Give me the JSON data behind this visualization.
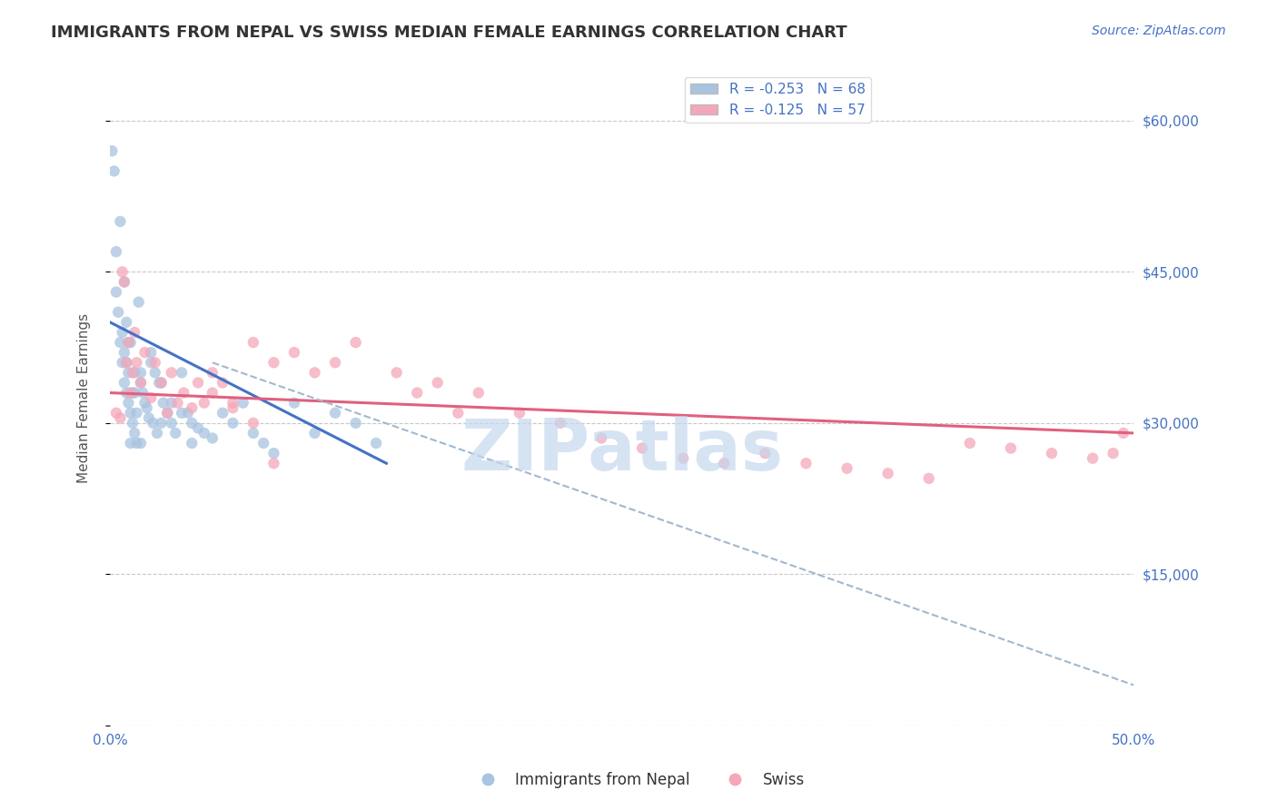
{
  "title": "IMMIGRANTS FROM NEPAL VS SWISS MEDIAN FEMALE EARNINGS CORRELATION CHART",
  "source": "Source: ZipAtlas.com",
  "xlabel": "",
  "ylabel": "Median Female Earnings",
  "xlim": [
    0.0,
    0.5
  ],
  "ylim": [
    0,
    65000
  ],
  "yticks": [
    0,
    15000,
    30000,
    45000,
    60000
  ],
  "ytick_labels": [
    "",
    "$15,000",
    "$30,000",
    "$45,000",
    "$60,000"
  ],
  "xticks": [
    0.0,
    0.1,
    0.2,
    0.3,
    0.4,
    0.5
  ],
  "xtick_labels": [
    "0.0%",
    "",
    "",
    "",
    "",
    "50.0%"
  ],
  "legend1_label": "R = -0.253   N = 68",
  "legend2_label": "R = -0.125   N = 57",
  "legend1_series": "Immigrants from Nepal",
  "legend2_series": "Swiss",
  "color_nepal": "#a8c4e0",
  "color_swiss": "#f4a7b9",
  "line_color_nepal": "#4472c4",
  "line_color_swiss": "#e06080",
  "line_color_dashed": "#a0b8d0",
  "background_color": "#ffffff",
  "grid_color": "#c8c8c8",
  "title_color": "#333333",
  "axis_label_color": "#555555",
  "tick_label_color": "#4472c4",
  "watermark_color": "#c5d8ee",
  "nepal_x": [
    0.001,
    0.002,
    0.003,
    0.003,
    0.004,
    0.005,
    0.005,
    0.006,
    0.006,
    0.007,
    0.007,
    0.008,
    0.008,
    0.009,
    0.009,
    0.01,
    0.01,
    0.011,
    0.011,
    0.012,
    0.012,
    0.013,
    0.013,
    0.014,
    0.015,
    0.015,
    0.016,
    0.017,
    0.018,
    0.019,
    0.02,
    0.021,
    0.022,
    0.023,
    0.024,
    0.025,
    0.026,
    0.028,
    0.03,
    0.032,
    0.035,
    0.038,
    0.04,
    0.043,
    0.046,
    0.05,
    0.055,
    0.06,
    0.065,
    0.07,
    0.075,
    0.08,
    0.09,
    0.1,
    0.11,
    0.12,
    0.13,
    0.007,
    0.008,
    0.009,
    0.01,
    0.012,
    0.015,
    0.02,
    0.025,
    0.03,
    0.035,
    0.04
  ],
  "nepal_y": [
    57000,
    55000,
    43000,
    47000,
    41000,
    38000,
    50000,
    36000,
    39000,
    34000,
    37000,
    33000,
    40000,
    32000,
    35000,
    31000,
    38000,
    30000,
    33000,
    29000,
    35000,
    28000,
    31000,
    42000,
    34000,
    28000,
    33000,
    32000,
    31500,
    30500,
    36000,
    30000,
    35000,
    29000,
    34000,
    30000,
    32000,
    31000,
    30000,
    29000,
    35000,
    31000,
    30000,
    29500,
    29000,
    28500,
    31000,
    30000,
    32000,
    29000,
    28000,
    27000,
    32000,
    29000,
    31000,
    30000,
    28000,
    44000,
    36000,
    38000,
    28000,
    33000,
    35000,
    37000,
    34000,
    32000,
    31000,
    28000
  ],
  "swiss_x": [
    0.003,
    0.005,
    0.006,
    0.007,
    0.008,
    0.009,
    0.01,
    0.011,
    0.012,
    0.013,
    0.015,
    0.017,
    0.02,
    0.022,
    0.025,
    0.028,
    0.03,
    0.033,
    0.036,
    0.04,
    0.043,
    0.046,
    0.05,
    0.055,
    0.06,
    0.07,
    0.08,
    0.09,
    0.1,
    0.11,
    0.12,
    0.14,
    0.16,
    0.18,
    0.2,
    0.22,
    0.24,
    0.26,
    0.28,
    0.3,
    0.32,
    0.34,
    0.36,
    0.38,
    0.4,
    0.42,
    0.44,
    0.46,
    0.48,
    0.49,
    0.495,
    0.15,
    0.17,
    0.05,
    0.06,
    0.07,
    0.08
  ],
  "swiss_y": [
    31000,
    30500,
    45000,
    44000,
    36000,
    38000,
    33000,
    35000,
    39000,
    36000,
    34000,
    37000,
    32500,
    36000,
    34000,
    31000,
    35000,
    32000,
    33000,
    31500,
    34000,
    32000,
    35000,
    34000,
    32000,
    38000,
    36000,
    37000,
    35000,
    36000,
    38000,
    35000,
    34000,
    33000,
    31000,
    30000,
    28500,
    27500,
    26500,
    26000,
    27000,
    26000,
    25500,
    25000,
    24500,
    28000,
    27500,
    27000,
    26500,
    27000,
    29000,
    33000,
    31000,
    33000,
    31500,
    30000,
    26000
  ],
  "nepal_trend_x": [
    0.0,
    0.135
  ],
  "nepal_trend_y": [
    40000,
    26000
  ],
  "swiss_trend_x": [
    0.0,
    0.5
  ],
  "swiss_trend_y": [
    33000,
    29000
  ],
  "dashed_trend_x": [
    0.05,
    0.5
  ],
  "dashed_trend_y": [
    36000,
    4000
  ]
}
